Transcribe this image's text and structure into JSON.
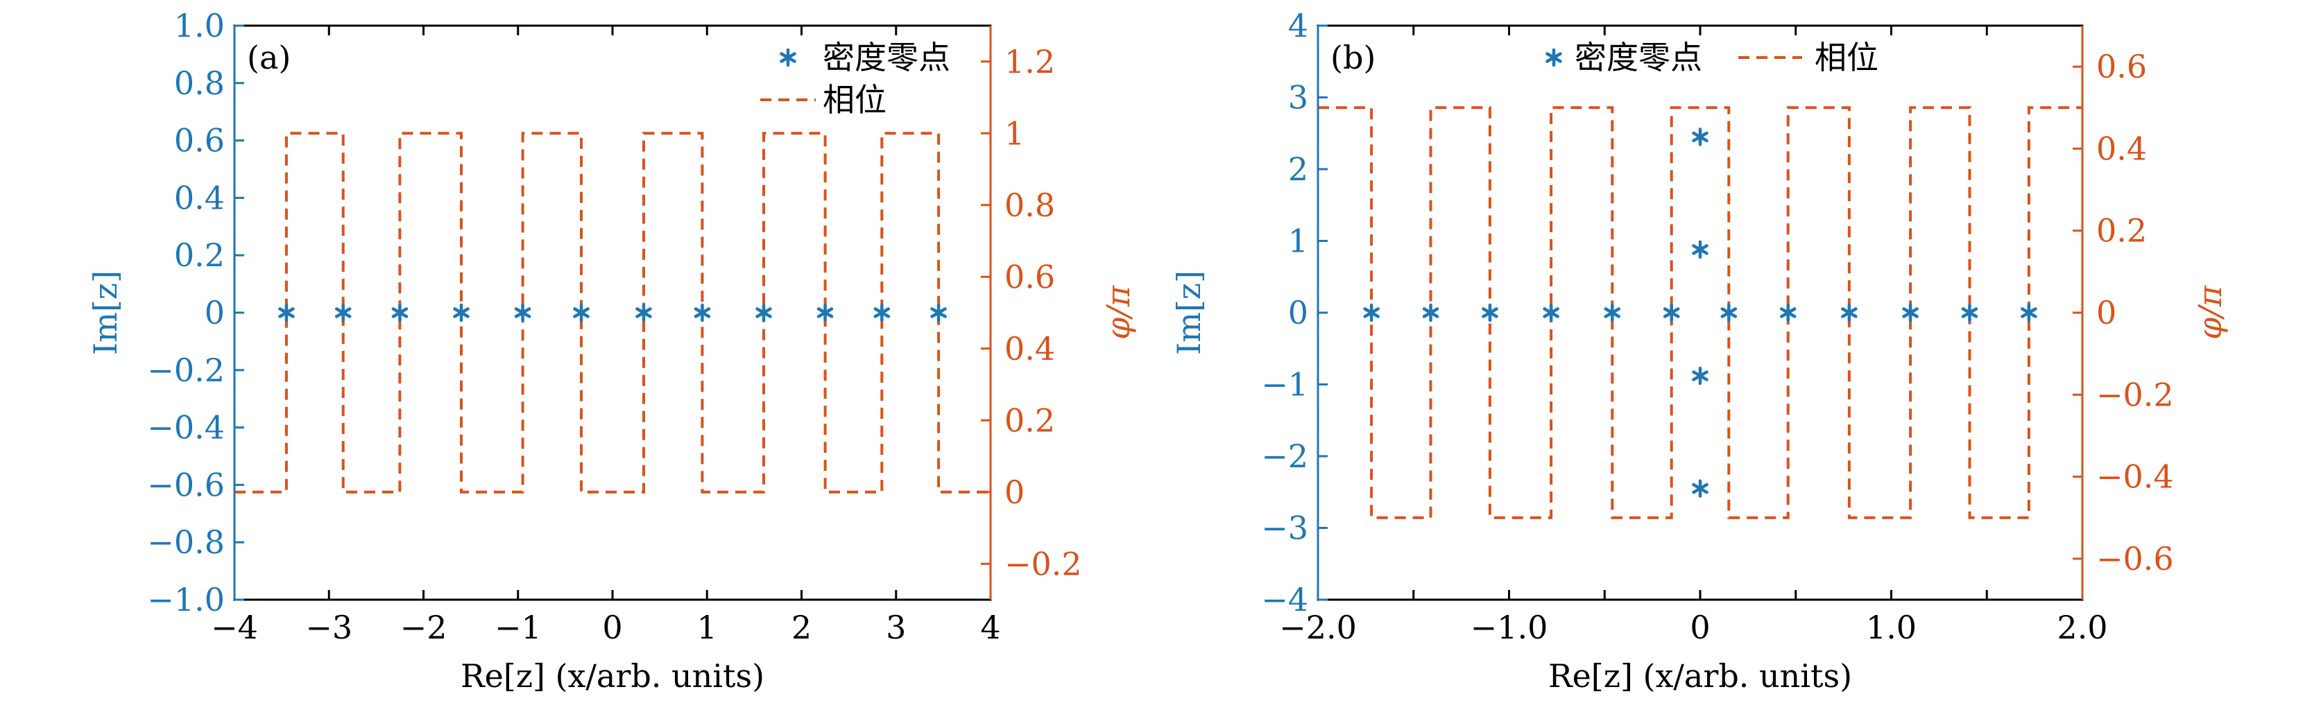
{
  "colors": {
    "blue": "#1f77b4",
    "orange": "#d95319",
    "axis": "#000000"
  },
  "legend": {
    "zeros_label": "密度零点",
    "phase_label": "相位",
    "zeros_marker": "asterisk",
    "phase_style": "dashed"
  },
  "chart_data": [
    {
      "type": "scatter",
      "panel_label": "(a)",
      "xlabel": "Re[z] (x/arb. units)",
      "ylabel": "Im[z]",
      "y2label": "φ/π",
      "xlim": [
        -4,
        4
      ],
      "ylim": [
        -1,
        1
      ],
      "y2lim": [
        -0.3,
        1.3
      ],
      "xticks": [
        -4,
        -3,
        -2,
        -1,
        0,
        1,
        2,
        3,
        4
      ],
      "xtick_labels": [
        "−4",
        "−3",
        "−2",
        "−1",
        "0",
        "1",
        "2",
        "3",
        "4"
      ],
      "yticks": [
        -1,
        -0.8,
        -0.6,
        -0.4,
        -0.2,
        0,
        0.2,
        0.4,
        0.6,
        0.8,
        1
      ],
      "ytick_labels": [
        "−1.0",
        "−0.8",
        "−0.6",
        "−0.4",
        "−0.2",
        "0",
        "0.2",
        "0.4",
        "0.6",
        "0.8",
        "1.0"
      ],
      "y2ticks": [
        -0.2,
        0,
        0.2,
        0.4,
        0.6,
        0.8,
        1,
        1.2
      ],
      "y2tick_labels": [
        "−0.2",
        "0",
        "0.2",
        "0.4",
        "0.6",
        "0.8",
        "1",
        "1.2"
      ],
      "legend_position": "top-right",
      "legend_layout": "vertical",
      "series": [
        {
          "name": "密度零点",
          "axis": "left",
          "points": [
            [
              -3.45,
              0
            ],
            [
              -2.85,
              0
            ],
            [
              -2.25,
              0
            ],
            [
              -1.6,
              0
            ],
            [
              -0.95,
              0
            ],
            [
              -0.33,
              0
            ],
            [
              0.33,
              0
            ],
            [
              0.95,
              0
            ],
            [
              1.6,
              0
            ],
            [
              2.25,
              0
            ],
            [
              2.85,
              0
            ],
            [
              3.45,
              0
            ]
          ]
        },
        {
          "name": "相位",
          "axis": "right",
          "step_x": [
            -4,
            -3.45,
            -2.85,
            -2.25,
            -1.6,
            -0.95,
            -0.33,
            0.33,
            0.95,
            1.6,
            2.25,
            2.85,
            3.45,
            4
          ],
          "step_y": [
            0,
            1,
            0,
            1,
            0,
            1,
            0,
            1,
            0,
            1,
            0,
            1,
            0
          ]
        }
      ]
    },
    {
      "type": "scatter",
      "panel_label": "(b)",
      "xlabel": "Re[z] (x/arb. units)",
      "ylabel": "Im[z]",
      "y2label": "φ/π",
      "xlim": [
        -2,
        2
      ],
      "ylim": [
        -4,
        4
      ],
      "y2lim": [
        -0.7,
        0.7
      ],
      "xticks": [
        -2,
        -1.5,
        -1,
        -0.5,
        0,
        0.5,
        1,
        1.5,
        2
      ],
      "xtick_labels": [
        "−2.0",
        "",
        "−1.0",
        "",
        "0",
        "",
        "1.0",
        "",
        "2.0"
      ],
      "yticks": [
        -4,
        -3,
        -2,
        -1,
        0,
        1,
        2,
        3,
        4
      ],
      "ytick_labels": [
        "−4",
        "−3",
        "−2",
        "−1",
        "0",
        "1",
        "2",
        "3",
        "4"
      ],
      "y2ticks": [
        -0.6,
        -0.4,
        -0.2,
        0,
        0.2,
        0.4,
        0.6
      ],
      "y2tick_labels": [
        "−0.6",
        "−0.4",
        "−0.2",
        "0",
        "0.2",
        "0.4",
        "0.6"
      ],
      "legend_position": "top-center",
      "legend_layout": "horizontal",
      "series": [
        {
          "name": "密度零点",
          "axis": "left",
          "points": [
            [
              -1.72,
              0
            ],
            [
              -1.41,
              0
            ],
            [
              -1.1,
              0
            ],
            [
              -0.78,
              0
            ],
            [
              -0.46,
              0
            ],
            [
              -0.15,
              0
            ],
            [
              0.15,
              0
            ],
            [
              0.46,
              0
            ],
            [
              0.78,
              0
            ],
            [
              1.1,
              0
            ],
            [
              1.41,
              0
            ],
            [
              1.72,
              0
            ],
            [
              0,
              2.45
            ],
            [
              0,
              0.88
            ],
            [
              0,
              -0.88
            ],
            [
              0,
              -2.45
            ]
          ]
        },
        {
          "name": "相位",
          "axis": "right",
          "step_x": [
            -2,
            -1.72,
            -1.41,
            -1.1,
            -0.78,
            -0.46,
            -0.15,
            0.15,
            0.46,
            0.78,
            1.1,
            1.41,
            1.72,
            2
          ],
          "step_y": [
            0.5,
            -0.5,
            0.5,
            -0.5,
            0.5,
            -0.5,
            0.5,
            -0.5,
            0.5,
            -0.5,
            0.5,
            -0.5,
            0.5
          ]
        }
      ]
    }
  ]
}
